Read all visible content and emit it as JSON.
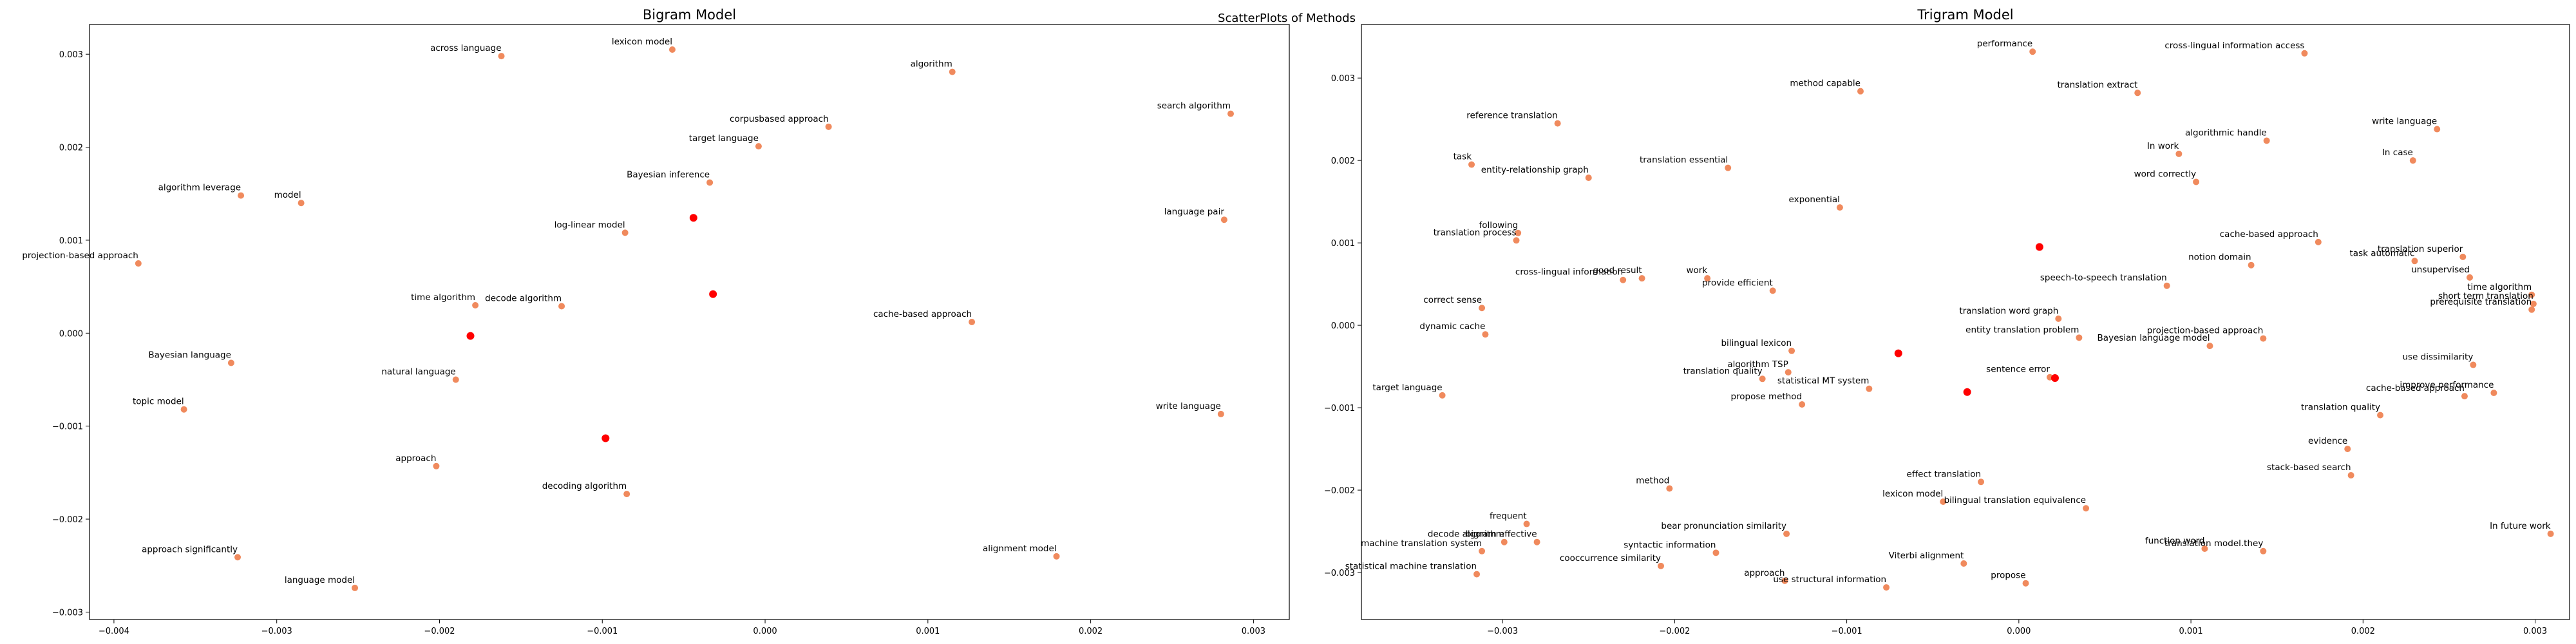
{
  "suptitle": "ScatterPlots of Methods",
  "chart_data": [
    {
      "type": "scatter",
      "title": "Bigram Model",
      "xlim": [
        -0.00415,
        0.00322
      ],
      "ylim": [
        -0.00308,
        0.00332
      ],
      "xticks": [
        -0.004,
        -0.003,
        -0.002,
        -0.001,
        0.0,
        0.001,
        0.002,
        0.003
      ],
      "xtick_labels": [
        "−0.004",
        "−0.003",
        "−0.002",
        "−0.001",
        "0.000",
        "0.001",
        "0.002",
        "0.003"
      ],
      "yticks": [
        -0.003,
        -0.002,
        -0.001,
        0.0,
        0.001,
        0.002,
        0.003
      ],
      "ytick_labels": [
        "−0.003",
        "−0.002",
        "−0.001",
        "0.000",
        "0.001",
        "0.002",
        "0.003"
      ],
      "grid": false,
      "colors": {
        "point": "#f08a5d",
        "center": "#ff0000"
      },
      "points": [
        {
          "label": "across language",
          "x": -0.00162,
          "y": 0.00298
        },
        {
          "label": "lexicon model",
          "x": -0.00057,
          "y": 0.00305
        },
        {
          "label": "algorithm",
          "x": 0.00115,
          "y": 0.00281
        },
        {
          "label": "search algorithm",
          "x": 0.00286,
          "y": 0.00236
        },
        {
          "label": "corpusbased approach",
          "x": 0.00039,
          "y": 0.00222
        },
        {
          "label": "target language",
          "x": -4e-05,
          "y": 0.00201
        },
        {
          "label": "Bayesian inference",
          "x": -0.00034,
          "y": 0.00162
        },
        {
          "label": "algorithm leverage",
          "x": -0.00322,
          "y": 0.00148
        },
        {
          "label": "model",
          "x": -0.00285,
          "y": 0.0014
        },
        {
          "label": "language pair",
          "x": 0.00282,
          "y": 0.00122
        },
        {
          "label": "log-linear model",
          "x": -0.00086,
          "y": 0.00108
        },
        {
          "label": "projection-based approach",
          "x": -0.00385,
          "y": 0.00075
        },
        {
          "label": "time algorithm",
          "x": -0.00178,
          "y": 0.0003
        },
        {
          "label": "decode algorithm",
          "x": -0.00125,
          "y": 0.00029
        },
        {
          "label": "cache-based approach",
          "x": 0.00127,
          "y": 0.00012
        },
        {
          "label": "Bayesian language",
          "x": -0.00328,
          "y": -0.00032
        },
        {
          "label": "natural language",
          "x": -0.0019,
          "y": -0.0005
        },
        {
          "label": "topic model",
          "x": -0.00357,
          "y": -0.00082
        },
        {
          "label": "write language",
          "x": 0.0028,
          "y": -0.00087
        },
        {
          "label": "approach",
          "x": -0.00202,
          "y": -0.00143
        },
        {
          "label": "decoding algorithm",
          "x": -0.00085,
          "y": -0.00173
        },
        {
          "label": "approach significantly",
          "x": -0.00324,
          "y": -0.00241
        },
        {
          "label": "alignment model",
          "x": 0.00179,
          "y": -0.0024
        },
        {
          "label": "language model",
          "x": -0.00252,
          "y": -0.00274
        }
      ],
      "centers": [
        {
          "x": -0.00044,
          "y": 0.00124
        },
        {
          "x": -0.00032,
          "y": 0.00042
        },
        {
          "x": -0.00181,
          "y": -3e-05
        },
        {
          "x": -0.00098,
          "y": -0.00113
        }
      ]
    },
    {
      "type": "scatter",
      "title": "Trigram Model",
      "xlim": [
        -0.00382,
        0.0032
      ],
      "ylim": [
        -0.00357,
        0.00365
      ],
      "xticks": [
        -0.003,
        -0.002,
        -0.001,
        0.0,
        0.001,
        0.002,
        0.003
      ],
      "xtick_labels": [
        "−0.003",
        "−0.002",
        "−0.001",
        "0.000",
        "0.001",
        "0.002",
        "0.003"
      ],
      "yticks": [
        -0.003,
        -0.002,
        -0.001,
        0.0,
        0.001,
        0.002,
        0.003
      ],
      "ytick_labels": [
        "−0.003",
        "−0.002",
        "−0.001",
        "0.000",
        "0.001",
        "0.002",
        "0.003"
      ],
      "grid": false,
      "colors": {
        "point": "#f08a5d",
        "center": "#ff0000"
      },
      "points": [
        {
          "label": "performance",
          "x": 8e-05,
          "y": 0.00332
        },
        {
          "label": "cross-lingual information access",
          "x": 0.00166,
          "y": 0.0033
        },
        {
          "label": "translation extract",
          "x": 0.00069,
          "y": 0.00282
        },
        {
          "label": "method capable",
          "x": -0.00092,
          "y": 0.00284
        },
        {
          "label": "reference translation",
          "x": -0.00268,
          "y": 0.00245
        },
        {
          "label": "algorithmic handle",
          "x": 0.00144,
          "y": 0.00224
        },
        {
          "label": "write language",
          "x": 0.00243,
          "y": 0.00238
        },
        {
          "label": "In work",
          "x": 0.00093,
          "y": 0.00208
        },
        {
          "label": "In case",
          "x": 0.00229,
          "y": 0.002
        },
        {
          "label": "task",
          "x": -0.00318,
          "y": 0.00195
        },
        {
          "label": "translation essential",
          "x": -0.00169,
          "y": 0.00191
        },
        {
          "label": "entity-relationship graph",
          "x": -0.0025,
          "y": 0.00179
        },
        {
          "label": "word correctly",
          "x": 0.00103,
          "y": 0.00174
        },
        {
          "label": "exponential",
          "x": -0.00104,
          "y": 0.00143
        },
        {
          "label": "following",
          "x": -0.00291,
          "y": 0.00112
        },
        {
          "label": "translation process",
          "x": -0.00292,
          "y": 0.00103
        },
        {
          "label": "cache-based approach",
          "x": 0.00174,
          "y": 0.00101
        },
        {
          "label": "translation superior",
          "x": 0.00258,
          "y": 0.00083
        },
        {
          "label": "notion domain",
          "x": 0.00135,
          "y": 0.00073
        },
        {
          "label": "task automatic",
          "x": 0.0023,
          "y": 0.00078
        },
        {
          "label": "unsupervised",
          "x": 0.00262,
          "y": 0.00058
        },
        {
          "label": "cross-lingual information",
          "x": -0.0023,
          "y": 0.00055
        },
        {
          "label": "good result",
          "x": -0.00219,
          "y": 0.00057
        },
        {
          "label": "work",
          "x": -0.00181,
          "y": 0.00057
        },
        {
          "label": "provide efficient",
          "x": -0.00143,
          "y": 0.00042
        },
        {
          "label": "speech-to-speech translation",
          "x": 0.00086,
          "y": 0.00048
        },
        {
          "label": "time algorithm",
          "x": 0.00298,
          "y": 0.00037
        },
        {
          "label": "short term translation",
          "x": 0.00299,
          "y": 0.00026
        },
        {
          "label": "prerequisite translation",
          "x": 0.00298,
          "y": 0.00019
        },
        {
          "label": "correct sense",
          "x": -0.00312,
          "y": 0.00021
        },
        {
          "label": "translation word graph",
          "x": 0.00023,
          "y": 8e-05
        },
        {
          "label": "dynamic cache",
          "x": -0.0031,
          "y": -0.00011
        },
        {
          "label": "entity translation problem",
          "x": 0.00035,
          "y": -0.00015
        },
        {
          "label": "projection-based approach",
          "x": 0.00142,
          "y": -0.00016
        },
        {
          "label": "Bayesian language model",
          "x": 0.00111,
          "y": -0.00025
        },
        {
          "label": "bilingual lexicon",
          "x": -0.00132,
          "y": -0.00031
        },
        {
          "label": "use dissimilarity",
          "x": 0.00264,
          "y": -0.00048
        },
        {
          "label": "algorithm TSP",
          "x": -0.00134,
          "y": -0.00057
        },
        {
          "label": "translation quality",
          "x": -0.00149,
          "y": -0.00065
        },
        {
          "label": "sentence error",
          "x": 0.00018,
          "y": -0.00063
        },
        {
          "label": "statistical MT system",
          "x": -0.00087,
          "y": -0.00077
        },
        {
          "label": "target language",
          "x": -0.00335,
          "y": -0.00085
        },
        {
          "label": "cache-based approach",
          "x": 0.00259,
          "y": -0.00086
        },
        {
          "label": "improve performance",
          "x": 0.00276,
          "y": -0.00082
        },
        {
          "label": "propose method",
          "x": -0.00126,
          "y": -0.00096
        },
        {
          "label": "translation quality",
          "x": 0.0021,
          "y": -0.00109
        },
        {
          "label": "evidence",
          "x": 0.00191,
          "y": -0.0015
        },
        {
          "label": "stack-based search",
          "x": 0.00193,
          "y": -0.00182
        },
        {
          "label": "effect translation",
          "x": -0.00022,
          "y": -0.0019
        },
        {
          "label": "method",
          "x": -0.00203,
          "y": -0.00198
        },
        {
          "label": "lexicon model",
          "x": -0.00044,
          "y": -0.00214
        },
        {
          "label": "bilingual translation equivalence",
          "x": 0.00039,
          "y": -0.00222
        },
        {
          "label": "frequent",
          "x": -0.00286,
          "y": -0.00241
        },
        {
          "label": "bear pronunciation similarity",
          "x": -0.00135,
          "y": -0.00253
        },
        {
          "label": "In future work",
          "x": 0.00309,
          "y": -0.00253
        },
        {
          "label": "decode algorithm",
          "x": -0.00299,
          "y": -0.00263
        },
        {
          "label": "bigram effective",
          "x": -0.0028,
          "y": -0.00263
        },
        {
          "label": "function word",
          "x": 0.00108,
          "y": -0.00271
        },
        {
          "label": "machine translation system",
          "x": -0.00312,
          "y": -0.00274
        },
        {
          "label": "syntactic information",
          "x": -0.00176,
          "y": -0.00276
        },
        {
          "label": "translation model.they",
          "x": 0.00142,
          "y": -0.00274
        },
        {
          "label": "Viterbi alignment",
          "x": -0.00032,
          "y": -0.00289
        },
        {
          "label": "cooccurrence similarity",
          "x": -0.00208,
          "y": -0.00292
        },
        {
          "label": "statistical machine translation",
          "x": -0.00315,
          "y": -0.00302
        },
        {
          "label": "approach",
          "x": -0.00136,
          "y": -0.0031
        },
        {
          "label": "propose",
          "x": 4e-05,
          "y": -0.00313
        },
        {
          "label": "use structural information",
          "x": -0.00077,
          "y": -0.00318
        }
      ],
      "centers": [
        {
          "x": 0.00012,
          "y": 0.00095
        },
        {
          "x": -0.0007,
          "y": -0.00034
        },
        {
          "x": 0.00021,
          "y": -0.00064
        },
        {
          "x": -0.0003,
          "y": -0.00081
        }
      ]
    }
  ]
}
